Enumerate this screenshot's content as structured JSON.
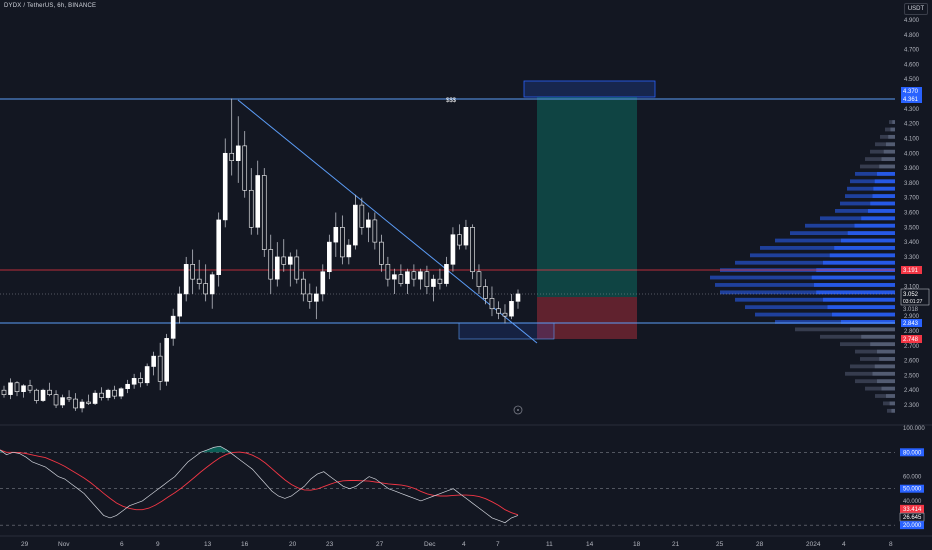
{
  "header": {
    "symbol_title": "DYDX / TetherUS, 6h, BINANCE",
    "currency": "USDT"
  },
  "chart_data": {
    "type": "candlestick",
    "price_axis": [
      "4.900",
      "4.800",
      "4.700",
      "4.600",
      "4.500",
      "4.300",
      "4.200",
      "4.100",
      "4.000",
      "3.900",
      "3.800",
      "3.700",
      "3.600",
      "3.500",
      "3.400",
      "3.300",
      "3.100",
      "2.900",
      "2.800",
      "2.700",
      "2.600",
      "2.500",
      "2.400",
      "2.300"
    ],
    "price_range": [
      2.2,
      4.98
    ],
    "time_axis": [
      "29",
      "Nov",
      "6",
      "9",
      "13",
      "16",
      "20",
      "23",
      "27",
      "Dec",
      "4",
      "7",
      "11",
      "14",
      "18",
      "21",
      "25",
      "28",
      "2024",
      "4",
      "8"
    ],
    "price_tags": {
      "upper_a": "4.370",
      "upper_b": "4.361",
      "red_level": "3.191",
      "last_price": "3.052",
      "countdown": "03:01:27",
      "tag_3018": "3.018",
      "blue_low": "2.843",
      "tag_2748": "2.748"
    },
    "annotations": {
      "dollar_label": "$$$"
    },
    "candles": [
      [
        2.4,
        2.43,
        2.35,
        2.37
      ],
      [
        2.37,
        2.48,
        2.34,
        2.45
      ],
      [
        2.45,
        2.46,
        2.36,
        2.39
      ],
      [
        2.39,
        2.44,
        2.35,
        2.43
      ],
      [
        2.43,
        2.47,
        2.38,
        2.4
      ],
      [
        2.4,
        2.41,
        2.31,
        2.33
      ],
      [
        2.33,
        2.41,
        2.32,
        2.4
      ],
      [
        2.4,
        2.45,
        2.36,
        2.37
      ],
      [
        2.37,
        2.4,
        2.28,
        2.3
      ],
      [
        2.3,
        2.37,
        2.28,
        2.35
      ],
      [
        2.35,
        2.4,
        2.32,
        2.34
      ],
      [
        2.34,
        2.38,
        2.26,
        2.28
      ],
      [
        2.28,
        2.34,
        2.25,
        2.32
      ],
      [
        2.32,
        2.37,
        2.3,
        2.31
      ],
      [
        2.31,
        2.4,
        2.3,
        2.38
      ],
      [
        2.38,
        2.42,
        2.33,
        2.35
      ],
      [
        2.35,
        2.41,
        2.33,
        2.4
      ],
      [
        2.4,
        2.43,
        2.34,
        2.36
      ],
      [
        2.36,
        2.42,
        2.34,
        2.41
      ],
      [
        2.41,
        2.47,
        2.38,
        2.44
      ],
      [
        2.44,
        2.51,
        2.41,
        2.48
      ],
      [
        2.48,
        2.52,
        2.42,
        2.45
      ],
      [
        2.45,
        2.58,
        2.43,
        2.56
      ],
      [
        2.56,
        2.66,
        2.5,
        2.63
      ],
      [
        2.63,
        2.72,
        2.4,
        2.46
      ],
      [
        2.46,
        2.78,
        2.43,
        2.75
      ],
      [
        2.75,
        2.95,
        2.7,
        2.9
      ],
      [
        2.9,
        3.1,
        2.85,
        3.05
      ],
      [
        3.05,
        3.3,
        3.0,
        3.25
      ],
      [
        3.25,
        3.35,
        3.05,
        3.15
      ],
      [
        3.15,
        3.28,
        3.08,
        3.12
      ],
      [
        3.12,
        3.25,
        3.0,
        3.05
      ],
      [
        3.05,
        3.2,
        2.95,
        3.18
      ],
      [
        3.18,
        3.6,
        3.1,
        3.55
      ],
      [
        3.55,
        4.1,
        3.5,
        4.0
      ],
      [
        4.0,
        4.37,
        3.85,
        3.95
      ],
      [
        3.95,
        4.25,
        3.8,
        4.05
      ],
      [
        4.05,
        4.15,
        3.7,
        3.75
      ],
      [
        3.75,
        3.9,
        3.45,
        3.5
      ],
      [
        3.5,
        3.95,
        3.45,
        3.85
      ],
      [
        3.85,
        3.9,
        3.3,
        3.35
      ],
      [
        3.35,
        3.45,
        3.05,
        3.15
      ],
      [
        3.15,
        3.4,
        3.1,
        3.3
      ],
      [
        3.3,
        3.42,
        3.2,
        3.25
      ],
      [
        3.25,
        3.33,
        3.1,
        3.3
      ],
      [
        3.3,
        3.35,
        3.12,
        3.15
      ],
      [
        3.15,
        3.2,
        3.0,
        3.05
      ],
      [
        3.05,
        3.12,
        2.95,
        3.0
      ],
      [
        3.0,
        3.1,
        2.88,
        3.05
      ],
      [
        3.05,
        3.25,
        3.0,
        3.2
      ],
      [
        3.2,
        3.45,
        3.15,
        3.4
      ],
      [
        3.4,
        3.6,
        3.3,
        3.5
      ],
      [
        3.5,
        3.58,
        3.25,
        3.3
      ],
      [
        3.3,
        3.42,
        3.25,
        3.38
      ],
      [
        3.38,
        3.72,
        3.35,
        3.65
      ],
      [
        3.65,
        3.7,
        3.45,
        3.5
      ],
      [
        3.5,
        3.6,
        3.4,
        3.55
      ],
      [
        3.55,
        3.6,
        3.35,
        3.4
      ],
      [
        3.4,
        3.45,
        3.2,
        3.25
      ],
      [
        3.25,
        3.3,
        3.1,
        3.15
      ],
      [
        3.15,
        3.22,
        3.05,
        3.18
      ],
      [
        3.18,
        3.25,
        3.1,
        3.12
      ],
      [
        3.12,
        3.22,
        3.05,
        3.2
      ],
      [
        3.2,
        3.25,
        3.1,
        3.15
      ],
      [
        3.15,
        3.22,
        3.08,
        3.2
      ],
      [
        3.2,
        3.24,
        3.05,
        3.1
      ],
      [
        3.1,
        3.18,
        3.0,
        3.15
      ],
      [
        3.15,
        3.22,
        3.08,
        3.12
      ],
      [
        3.12,
        3.3,
        3.1,
        3.25
      ],
      [
        3.25,
        3.5,
        3.2,
        3.45
      ],
      [
        3.45,
        3.52,
        3.35,
        3.38
      ],
      [
        3.38,
        3.55,
        3.35,
        3.5
      ],
      [
        3.5,
        3.52,
        3.15,
        3.2
      ],
      [
        3.2,
        3.25,
        3.05,
        3.1
      ],
      [
        3.1,
        3.15,
        2.98,
        3.02
      ],
      [
        3.02,
        3.1,
        2.9,
        2.95
      ],
      [
        2.95,
        3.0,
        2.88,
        2.92
      ],
      [
        2.92,
        2.98,
        2.85,
        2.9
      ],
      [
        2.9,
        3.05,
        2.88,
        3.0
      ],
      [
        3.0,
        3.08,
        2.95,
        3.05
      ]
    ],
    "volume_profile": [
      [
        2.25,
        8
      ],
      [
        2.3,
        12
      ],
      [
        2.35,
        20
      ],
      [
        2.4,
        30
      ],
      [
        2.45,
        40
      ],
      [
        2.5,
        50
      ],
      [
        2.55,
        45
      ],
      [
        2.6,
        35
      ],
      [
        2.65,
        40
      ],
      [
        2.7,
        55
      ],
      [
        2.75,
        75
      ],
      [
        2.8,
        100
      ],
      [
        2.85,
        120
      ],
      [
        2.9,
        140
      ],
      [
        2.95,
        150
      ],
      [
        3.0,
        160
      ],
      [
        3.05,
        175
      ],
      [
        3.1,
        180
      ],
      [
        3.15,
        185
      ],
      [
        3.2,
        175
      ],
      [
        3.25,
        160
      ],
      [
        3.3,
        145
      ],
      [
        3.35,
        135
      ],
      [
        3.4,
        120
      ],
      [
        3.45,
        105
      ],
      [
        3.5,
        90
      ],
      [
        3.55,
        75
      ],
      [
        3.6,
        60
      ],
      [
        3.65,
        55
      ],
      [
        3.7,
        50
      ],
      [
        3.75,
        48
      ],
      [
        3.8,
        45
      ],
      [
        3.85,
        40
      ],
      [
        3.9,
        35
      ],
      [
        3.95,
        30
      ],
      [
        4.0,
        25
      ],
      [
        4.05,
        20
      ],
      [
        4.1,
        15
      ],
      [
        4.15,
        10
      ],
      [
        4.2,
        6
      ]
    ],
    "rsi": {
      "axis": [
        "100.000",
        "80.000",
        "60.000",
        "50.000",
        "40.000",
        "33.414",
        "26.645",
        "20.000"
      ],
      "range": [
        16,
        100
      ],
      "levels": [
        80,
        50,
        20
      ],
      "series": [
        82,
        78,
        80,
        79,
        76,
        72,
        70,
        68,
        64,
        60,
        58,
        54,
        50,
        46,
        40,
        34,
        28,
        26,
        28,
        32,
        36,
        38,
        40,
        44,
        48,
        52,
        56,
        60,
        66,
        72,
        76,
        80,
        82,
        84,
        85,
        82,
        78,
        74,
        70,
        66,
        60,
        54,
        48,
        44,
        42,
        44,
        48,
        52,
        58,
        62,
        64,
        60,
        56,
        52,
        50,
        52,
        56,
        60,
        58,
        54,
        50,
        48,
        46,
        44,
        42,
        40,
        42,
        44,
        46,
        48,
        50,
        46,
        42,
        38,
        34,
        30,
        26,
        24,
        22,
        26,
        28
      ]
    }
  }
}
